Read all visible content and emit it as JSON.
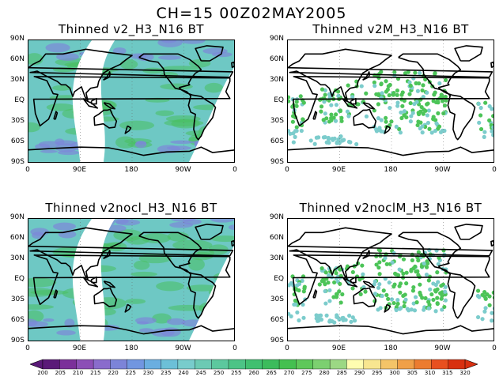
{
  "main_title": "CH=15   00Z02MAY2005",
  "panels": [
    {
      "title": "Thinned v2_H3_N16 BT",
      "type": "swath"
    },
    {
      "title": "Thinned v2M_H3_N16 BT",
      "type": "points"
    },
    {
      "title": "Thinned v2nocl_H3_N16 BT",
      "type": "swath"
    },
    {
      "title": "Thinned v2noclM_H3_N16 BT",
      "type": "points"
    }
  ],
  "lat_labels": [
    "90N",
    "60N",
    "30N",
    "EQ",
    "30S",
    "60S",
    "90S"
  ],
  "lon_labels": [
    "0",
    "90E",
    "180",
    "90W",
    "0"
  ],
  "colorbar": {
    "labels": [
      "200",
      "205",
      "210",
      "215",
      "220",
      "225",
      "230",
      "235",
      "240",
      "245",
      "250",
      "255",
      "260",
      "265",
      "270",
      "275",
      "280",
      "285",
      "290",
      "295",
      "300",
      "305",
      "310",
      "315",
      "320"
    ],
    "colors": [
      "#5a1a78",
      "#7b2f9a",
      "#8c4fb6",
      "#8a6ccc",
      "#7c84d8",
      "#7196e0",
      "#6aaee0",
      "#6cc0d8",
      "#78cccc",
      "#6ccab4",
      "#5cc89e",
      "#4cc486",
      "#40c070",
      "#3cbc5c",
      "#44c050",
      "#5ec85a",
      "#7cd070",
      "#9cd884",
      "#fffdb0",
      "#f8e690",
      "#f4c468",
      "#f0a048",
      "#ec7c30",
      "#e85020",
      "#d83010"
    ]
  },
  "map_colors": {
    "swath_base": "#6ec8c4",
    "swath_green": "#48c060",
    "swath_purple": "#7c88d8",
    "point_green": "#4cc458",
    "point_cyan": "#7ccccc"
  }
}
